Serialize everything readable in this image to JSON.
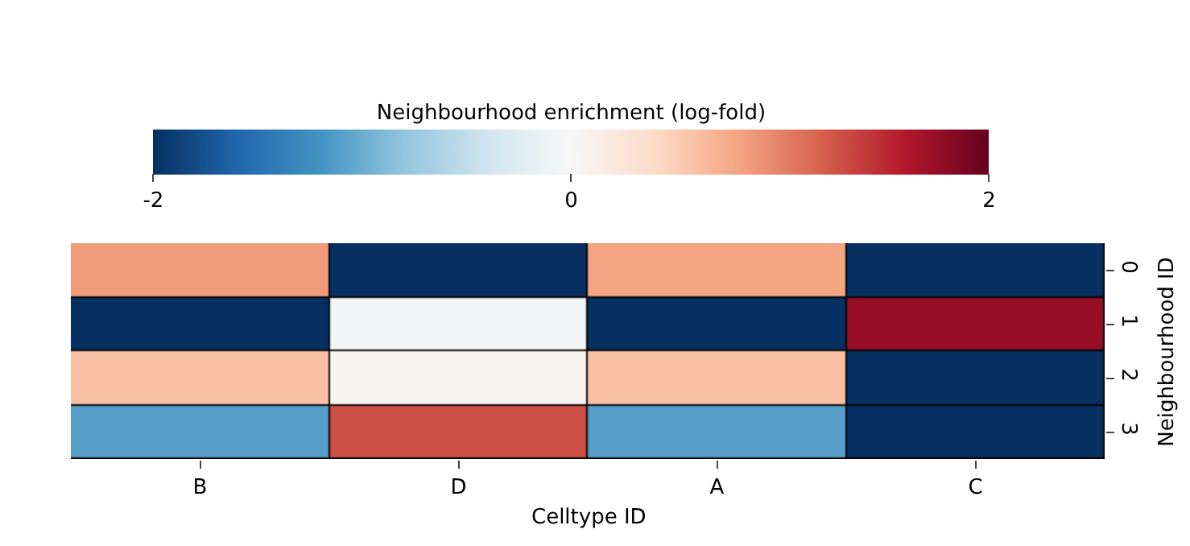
{
  "chart_data": {
    "type": "heatmap",
    "xlabel": "Celltype ID",
    "ylabel": "Neighbourhood ID",
    "clabel": "Neighbourhood enrichment (log-fold)",
    "categories": [
      "B",
      "D",
      "A",
      "C"
    ],
    "y_categories": [
      "0",
      "1",
      "2",
      "3"
    ],
    "cells": [
      [
        0.85,
        -2,
        0.8,
        -2
      ],
      [
        -2,
        -0.05,
        -2,
        1.75
      ],
      [
        0.6,
        0.05,
        0.6,
        -2
      ],
      [
        -1.1,
        1.3,
        -1.1,
        -2
      ]
    ],
    "clim": [
      -2,
      2
    ],
    "cticks": [
      -2,
      0,
      2
    ]
  }
}
